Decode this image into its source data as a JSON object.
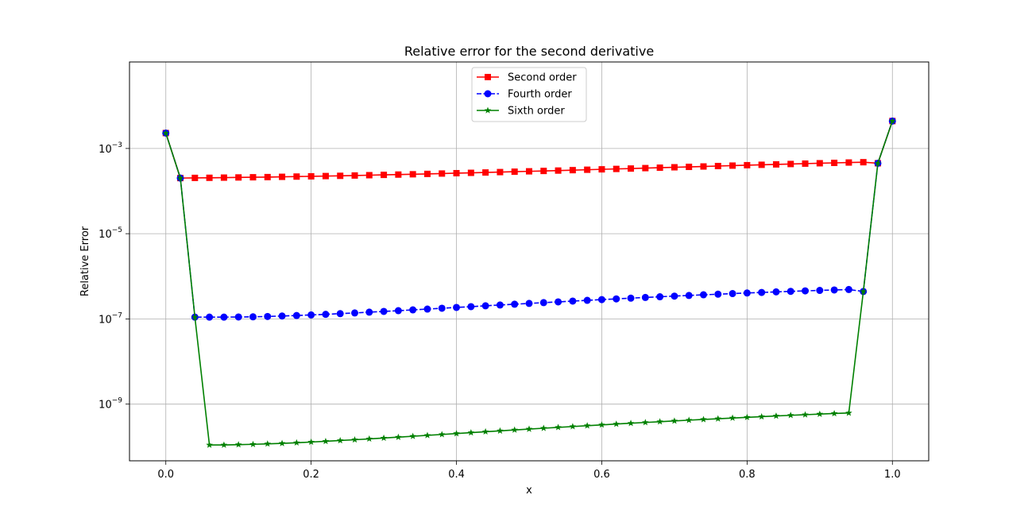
{
  "chart_data": {
    "type": "line",
    "title": "Relative error for the second derivative",
    "xlabel": "x",
    "ylabel": "Relative Error",
    "yscale": "log",
    "xlim": [
      -0.05,
      1.05
    ],
    "ylim_exponent": [
      -10.33,
      -0.97
    ],
    "grid": true,
    "legend_position": "upper center",
    "xticks": [
      {
        "value": 0.0,
        "label": "0.0"
      },
      {
        "value": 0.2,
        "label": "0.2"
      },
      {
        "value": 0.4,
        "label": "0.4"
      },
      {
        "value": 0.6,
        "label": "0.6"
      },
      {
        "value": 0.8,
        "label": "0.8"
      },
      {
        "value": 1.0,
        "label": "1.0"
      }
    ],
    "yticks": [
      {
        "value": 0.001,
        "base": "10",
        "exp": "−3"
      },
      {
        "value": 1e-05,
        "base": "10",
        "exp": "−5"
      },
      {
        "value": 1e-07,
        "base": "10",
        "exp": "−7"
      },
      {
        "value": 1e-09,
        "base": "10",
        "exp": "−9"
      }
    ],
    "series": [
      {
        "name": "Second order",
        "color": "#ff0000",
        "linestyle": "solid",
        "marker": "square",
        "points": [
          [
            0.0,
            0.0023
          ],
          [
            0.02,
            0.000202
          ],
          [
            0.04,
            0.000204
          ],
          [
            0.06,
            0.000205
          ],
          [
            0.08,
            0.000207
          ],
          [
            0.1,
            0.000209
          ],
          [
            0.12,
            0.000211
          ],
          [
            0.14,
            0.000213
          ],
          [
            0.16,
            0.000216
          ],
          [
            0.18,
            0.000219
          ],
          [
            0.2,
            0.000222
          ],
          [
            0.22,
            0.000225
          ],
          [
            0.24,
            0.000228
          ],
          [
            0.26,
            0.000232
          ],
          [
            0.28,
            0.000236
          ],
          [
            0.3,
            0.00024
          ],
          [
            0.32,
            0.000244
          ],
          [
            0.34,
            0.000248
          ],
          [
            0.36,
            0.000253
          ],
          [
            0.38,
            0.000258
          ],
          [
            0.4,
            0.000263
          ],
          [
            0.42,
            0.000268
          ],
          [
            0.44,
            0.000273
          ],
          [
            0.46,
            0.000279
          ],
          [
            0.48,
            0.000285
          ],
          [
            0.5,
            0.000291
          ],
          [
            0.52,
            0.000297
          ],
          [
            0.54,
            0.000303
          ],
          [
            0.56,
            0.00031
          ],
          [
            0.58,
            0.000317
          ],
          [
            0.6,
            0.000324
          ],
          [
            0.62,
            0.000331
          ],
          [
            0.64,
            0.000338
          ],
          [
            0.66,
            0.000346
          ],
          [
            0.68,
            0.000354
          ],
          [
            0.7,
            0.000362
          ],
          [
            0.72,
            0.00037
          ],
          [
            0.74,
            0.000378
          ],
          [
            0.76,
            0.000387
          ],
          [
            0.78,
            0.000396
          ],
          [
            0.8,
            0.000405
          ],
          [
            0.82,
            0.000414
          ],
          [
            0.84,
            0.000423
          ],
          [
            0.86,
            0.000432
          ],
          [
            0.88,
            0.000441
          ],
          [
            0.9,
            0.00045
          ],
          [
            0.92,
            0.000459
          ],
          [
            0.94,
            0.000468
          ],
          [
            0.96,
            0.000476
          ],
          [
            0.98,
            0.00045
          ],
          [
            1.0,
            0.0044
          ]
        ]
      },
      {
        "name": "Fourth order",
        "color": "#0000ff",
        "linestyle": "dashed",
        "marker": "circle",
        "points": [
          [
            0.0,
            0.0023
          ],
          [
            0.02,
            0.000202
          ],
          [
            0.04,
            1.1e-07
          ],
          [
            0.06,
            1.1e-07
          ],
          [
            0.08,
            1.1e-07
          ],
          [
            0.1,
            1.11e-07
          ],
          [
            0.12,
            1.12e-07
          ],
          [
            0.14,
            1.14e-07
          ],
          [
            0.16,
            1.17e-07
          ],
          [
            0.18,
            1.2e-07
          ],
          [
            0.2,
            1.24e-07
          ],
          [
            0.22,
            1.28e-07
          ],
          [
            0.24,
            1.33e-07
          ],
          [
            0.26,
            1.38e-07
          ],
          [
            0.28,
            1.44e-07
          ],
          [
            0.3,
            1.5e-07
          ],
          [
            0.32,
            1.56e-07
          ],
          [
            0.34,
            1.63e-07
          ],
          [
            0.36,
            1.7e-07
          ],
          [
            0.38,
            1.78e-07
          ],
          [
            0.4,
            1.86e-07
          ],
          [
            0.42,
            1.94e-07
          ],
          [
            0.44,
            2.03e-07
          ],
          [
            0.46,
            2.12e-07
          ],
          [
            0.48,
            2.21e-07
          ],
          [
            0.5,
            2.31e-07
          ],
          [
            0.52,
            2.41e-07
          ],
          [
            0.54,
            2.51e-07
          ],
          [
            0.56,
            2.62e-07
          ],
          [
            0.58,
            2.73e-07
          ],
          [
            0.6,
            2.84e-07
          ],
          [
            0.62,
            2.95e-07
          ],
          [
            0.64,
            3.07e-07
          ],
          [
            0.66,
            3.19e-07
          ],
          [
            0.68,
            3.31e-07
          ],
          [
            0.7,
            3.43e-07
          ],
          [
            0.72,
            3.55e-07
          ],
          [
            0.74,
            3.68e-07
          ],
          [
            0.76,
            3.8e-07
          ],
          [
            0.78,
            3.93e-07
          ],
          [
            0.8,
            4.06e-07
          ],
          [
            0.82,
            4.18e-07
          ],
          [
            0.84,
            4.31e-07
          ],
          [
            0.86,
            4.43e-07
          ],
          [
            0.88,
            4.55e-07
          ],
          [
            0.9,
            4.67e-07
          ],
          [
            0.92,
            4.78e-07
          ],
          [
            0.94,
            4.89e-07
          ],
          [
            0.96,
            4.4e-07
          ],
          [
            0.98,
            0.00045
          ],
          [
            1.0,
            0.0044
          ]
        ]
      },
      {
        "name": "Sixth order",
        "color": "#008000",
        "linestyle": "solid",
        "marker": "star",
        "points": [
          [
            0.0,
            0.0023
          ],
          [
            0.02,
            0.000202
          ],
          [
            0.04,
            1.1e-07
          ],
          [
            0.06,
            1.1e-10
          ],
          [
            0.08,
            1.1e-10
          ],
          [
            0.1,
            1.12e-10
          ],
          [
            0.12,
            1.14e-10
          ],
          [
            0.14,
            1.17e-10
          ],
          [
            0.16,
            1.2e-10
          ],
          [
            0.18,
            1.24e-10
          ],
          [
            0.2,
            1.29e-10
          ],
          [
            0.22,
            1.34e-10
          ],
          [
            0.24,
            1.4e-10
          ],
          [
            0.26,
            1.46e-10
          ],
          [
            0.28,
            1.53e-10
          ],
          [
            0.3,
            1.6e-10
          ],
          [
            0.32,
            1.68e-10
          ],
          [
            0.34,
            1.76e-10
          ],
          [
            0.36,
            1.85e-10
          ],
          [
            0.38,
            1.94e-10
          ],
          [
            0.4,
            2.04e-10
          ],
          [
            0.42,
            2.14e-10
          ],
          [
            0.44,
            2.25e-10
          ],
          [
            0.46,
            2.36e-10
          ],
          [
            0.48,
            2.48e-10
          ],
          [
            0.5,
            2.6e-10
          ],
          [
            0.52,
            2.72e-10
          ],
          [
            0.54,
            2.85e-10
          ],
          [
            0.56,
            2.98e-10
          ],
          [
            0.58,
            3.12e-10
          ],
          [
            0.6,
            3.26e-10
          ],
          [
            0.62,
            3.41e-10
          ],
          [
            0.64,
            3.56e-10
          ],
          [
            0.66,
            3.71e-10
          ],
          [
            0.68,
            3.87e-10
          ],
          [
            0.7,
            4.03e-10
          ],
          [
            0.72,
            4.2e-10
          ],
          [
            0.74,
            4.37e-10
          ],
          [
            0.76,
            4.54e-10
          ],
          [
            0.78,
            4.72e-10
          ],
          [
            0.8,
            4.9e-10
          ],
          [
            0.82,
            5.08e-10
          ],
          [
            0.84,
            5.27e-10
          ],
          [
            0.86,
            5.46e-10
          ],
          [
            0.88,
            5.65e-10
          ],
          [
            0.9,
            5.84e-10
          ],
          [
            0.92,
            6.03e-10
          ],
          [
            0.94,
            6.2e-10
          ],
          [
            0.96,
            4.4e-07
          ],
          [
            0.98,
            0.00045
          ],
          [
            1.0,
            0.0044
          ]
        ]
      }
    ]
  }
}
